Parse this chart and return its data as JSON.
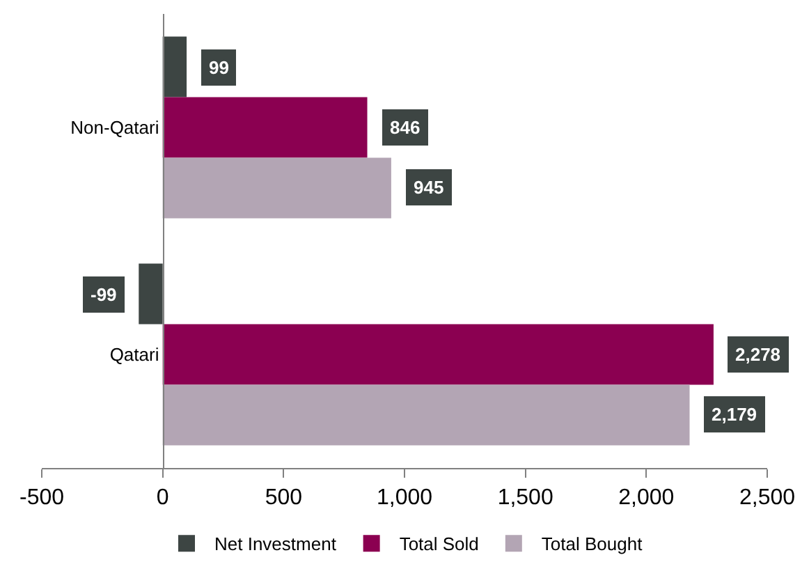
{
  "chart_data": {
    "type": "bar",
    "orientation": "horizontal",
    "categories": [
      "Non-Qatari",
      "Qatari"
    ],
    "series": [
      {
        "name": "Net Investment",
        "color": "#3d4543",
        "values": [
          99,
          -99
        ],
        "value_labels": [
          "99",
          "-99"
        ]
      },
      {
        "name": "Total Sold",
        "color": "#8b0051",
        "values": [
          846,
          2278
        ],
        "value_labels": [
          "846",
          "2,278"
        ]
      },
      {
        "name": "Total Bought",
        "color": "#b3a5b4",
        "values": [
          945,
          2179
        ],
        "value_labels": [
          "945",
          "2,179"
        ]
      }
    ],
    "xlim": [
      -500,
      2500
    ],
    "xticks": [
      -500,
      0,
      500,
      {
        "value": 1000,
        "label": "1,000"
      },
      {
        "value": 1500,
        "label": "1,500"
      },
      {
        "value": 2000,
        "label": "2,000"
      },
      {
        "value": 2500,
        "label": "2,500"
      }
    ],
    "legend": "bottom"
  }
}
